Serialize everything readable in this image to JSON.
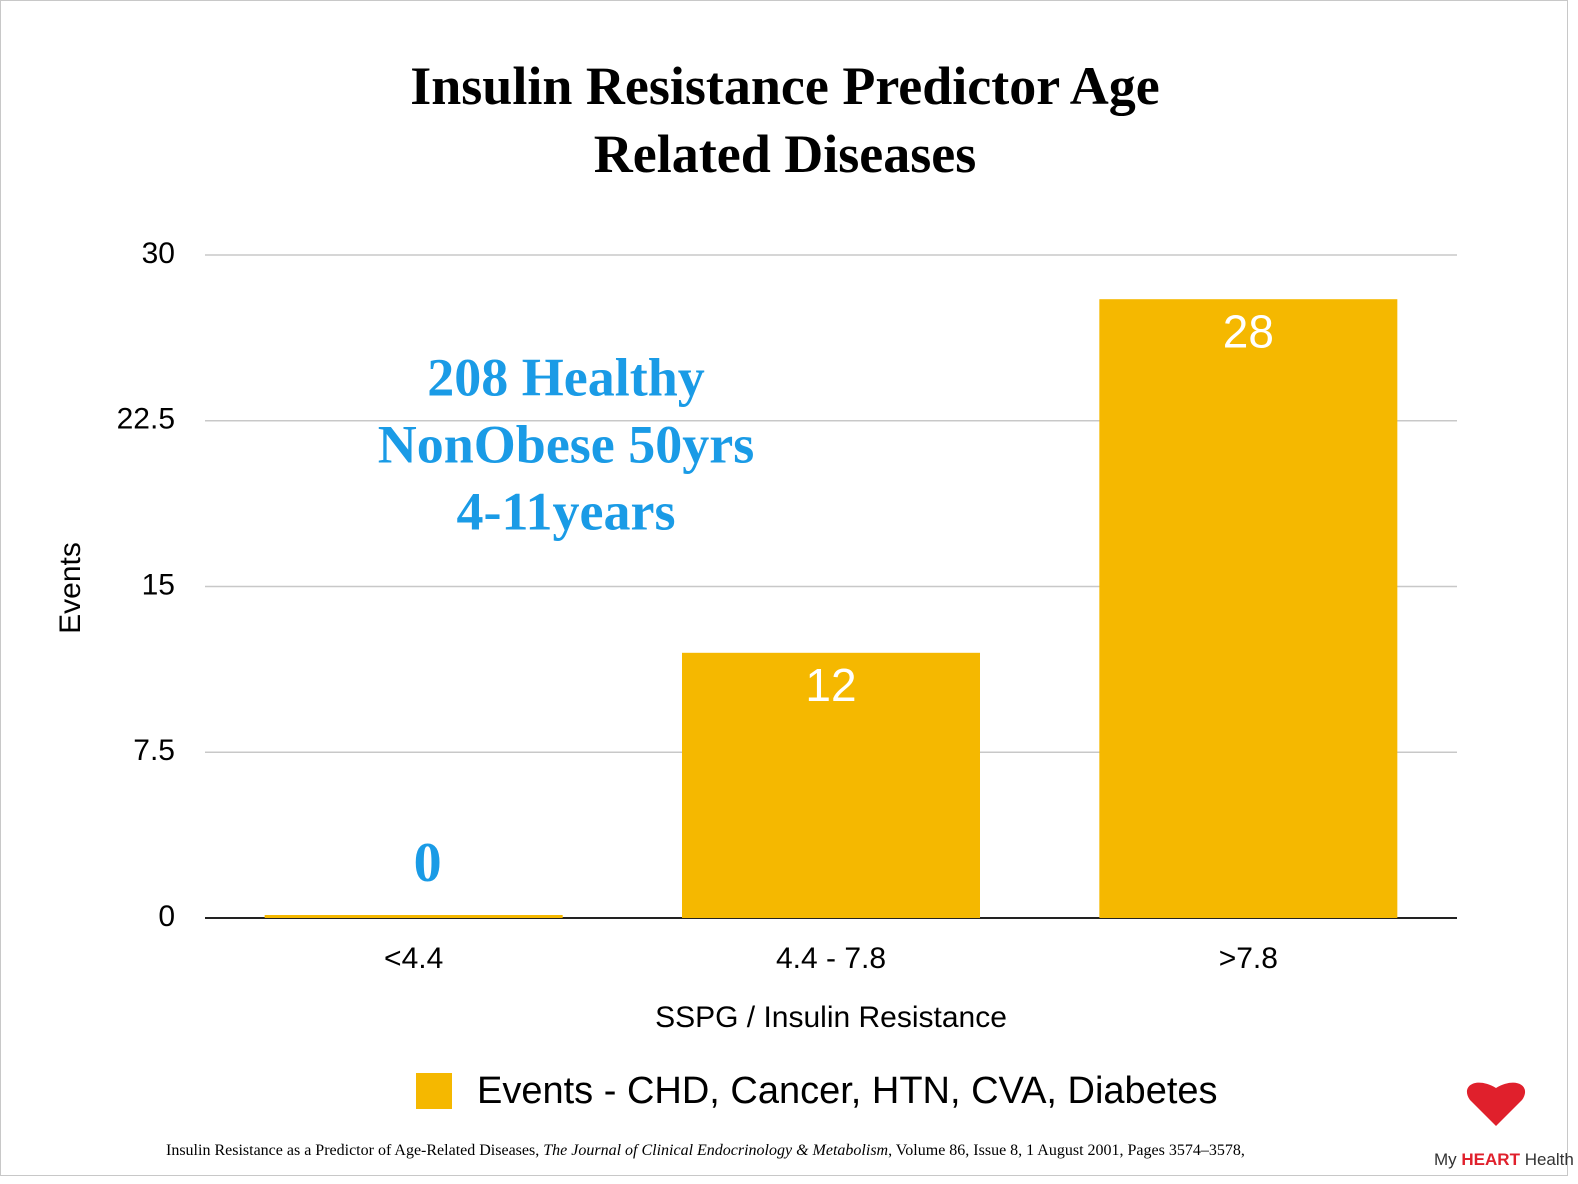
{
  "chart_data": {
    "type": "bar",
    "title": "Insulin Resistance Predictor Age Related Diseases",
    "categories": [
      "<4.4",
      "4.4 - 7.8",
      ">7.8"
    ],
    "values": [
      0,
      12,
      28
    ],
    "color": "#f5b800",
    "ylim": [
      0,
      30
    ],
    "yticks": [
      0,
      7.5,
      15,
      22.5,
      30
    ],
    "grid": true,
    "x_label": "SSPG / Insulin Resistance",
    "y_label": "Events",
    "legend": "Events - CHD, Cancer, HTN, CVA, Diabetes",
    "legend_position": "bottom",
    "annotation": [
      "208 Healthy",
      "NonObese 50yrs",
      "4-11years"
    ],
    "annotation_color": "#1a9be6",
    "source": [
      "Insulin Resistance as a Predictor of Age-Related Diseases, ",
      "The Journal of Clinical Endocrinology & Metabolism",
      ", Volume 86, Issue 8, 1 August 2001, Pages 3574–3578,"
    ],
    "logo": [
      "My",
      "HEART",
      "Health"
    ]
  }
}
